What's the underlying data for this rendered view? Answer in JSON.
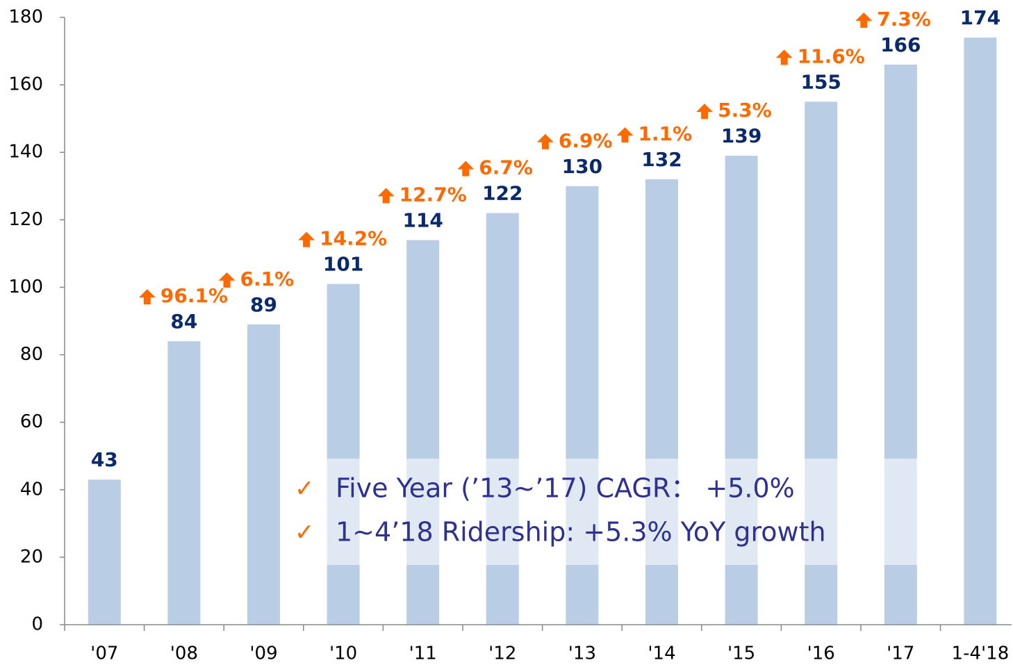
{
  "chart_data": {
    "type": "bar",
    "categories": [
      "'07",
      "'08",
      "'09",
      "'10",
      "'11",
      "'12",
      "'13",
      "'14",
      "'15",
      "'16",
      "'17",
      "1-4'18"
    ],
    "values": [
      43,
      84,
      89,
      101,
      114,
      122,
      130,
      132,
      139,
      155,
      166,
      174
    ],
    "color": "#b9cde5",
    "value_label_color": "#0a2a6b",
    "growth": {
      "color": "#ff6a00",
      "values": [
        null,
        96.1,
        6.1,
        14.2,
        12.7,
        6.7,
        6.9,
        1.1,
        5.3,
        11.6,
        7.3,
        null
      ],
      "value_labels": [
        null,
        "96.1%",
        "6.1%",
        "14.2%",
        "12.7%",
        "6.7%",
        "6.9%",
        "1.1%",
        "5.3%",
        "11.6%",
        "7.3%",
        null
      ]
    },
    "ylim": [
      0,
      180
    ],
    "yticks": [
      0,
      20,
      40,
      60,
      80,
      100,
      120,
      140,
      160,
      180
    ],
    "annotations": [
      "Five Year (’13~’17) CAGR：  +5.0%",
      "1~4’18 Ridership: +5.3% YoY growth"
    ]
  }
}
